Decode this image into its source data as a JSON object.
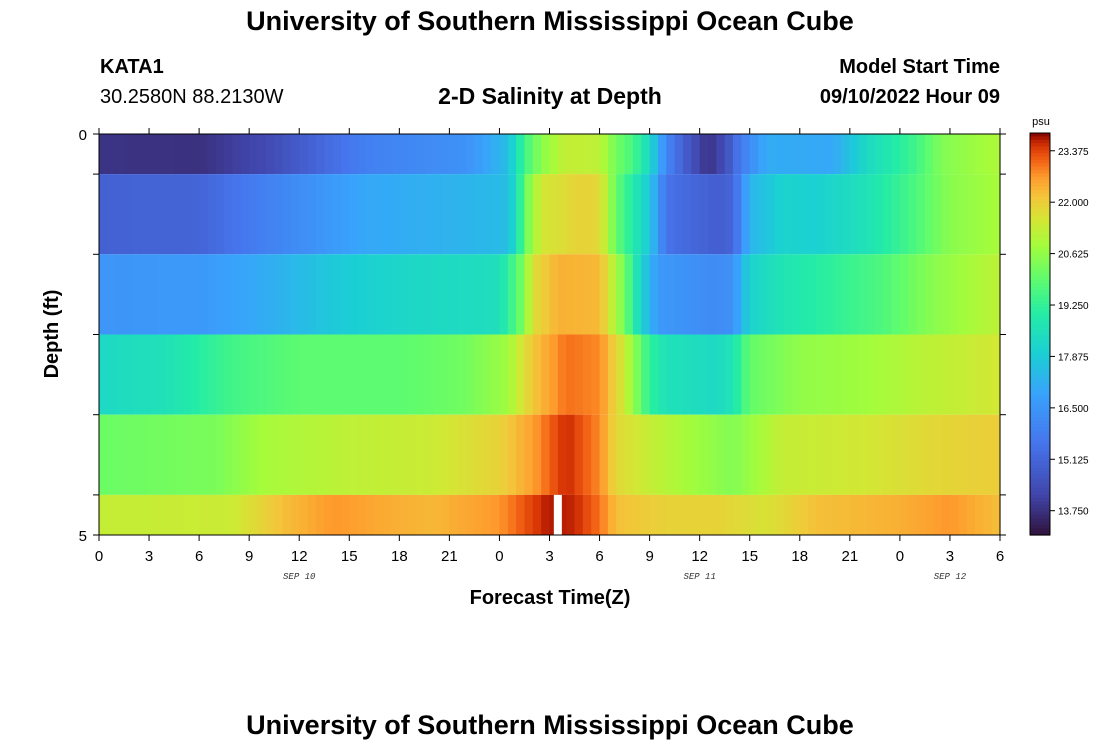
{
  "header": {
    "title": "University of Southern Mississippi Ocean Cube",
    "station": "KATA1",
    "coords": "30.2580N  88.2130W",
    "plot_title": "2-D Salinity at Depth",
    "model_start_label": "Model Start Time",
    "model_start_value": "09/10/2022 Hour 09"
  },
  "footer": {
    "title": "University of Southern Mississippi Ocean Cube"
  },
  "colorbar": {
    "unit": "psu",
    "tick_labels": [
      "23.375",
      "22.000",
      "20.625",
      "19.250",
      "17.875",
      "16.500",
      "15.125",
      "13.750"
    ],
    "tick_values": [
      23.375,
      22.0,
      20.625,
      19.25,
      17.875,
      16.5,
      15.125,
      13.75
    ],
    "range": [
      13.1,
      23.85
    ]
  },
  "chart_data": {
    "type": "heatmap",
    "title": "2-D Salinity at Depth",
    "xlabel": "Forecast Time(Z)",
    "ylabel": "Depth (ft)",
    "x_range_hours": [
      0,
      54
    ],
    "x_tick_labels": [
      "0",
      "3",
      "6",
      "9",
      "12",
      "15",
      "18",
      "21",
      "0",
      "3",
      "6",
      "9",
      "12",
      "15",
      "18",
      "21",
      "0",
      "3",
      "6"
    ],
    "date_labels": [
      {
        "text": "SEP 10",
        "hour": 12
      },
      {
        "text": "SEP 11",
        "hour": 36
      },
      {
        "text": "SEP 12",
        "hour": 51
      }
    ],
    "y_range_ft": [
      0,
      5
    ],
    "y_tick_labels": [
      "0",
      "5"
    ],
    "depth_layers_ft": [
      [
        0,
        0.5
      ],
      [
        0.5,
        1.5
      ],
      [
        1.5,
        2.5
      ],
      [
        2.5,
        3.5
      ],
      [
        3.5,
        4.5
      ],
      [
        4.5,
        5
      ]
    ],
    "missing_data": {
      "layer": 5,
      "hour": 27.5
    },
    "salinity_psu_keyframes": [
      {
        "layer": 0,
        "points": [
          [
            0,
            13.8
          ],
          [
            6,
            13.75
          ],
          [
            10,
            14.3
          ],
          [
            16,
            15.9
          ],
          [
            22,
            16.4
          ],
          [
            24.5,
            17.5
          ],
          [
            25.5,
            19.5
          ],
          [
            26.5,
            20.5
          ],
          [
            28,
            21.3
          ],
          [
            30,
            21.2
          ],
          [
            31,
            20.2
          ],
          [
            32,
            19.6
          ],
          [
            33,
            18.3
          ],
          [
            34,
            16.1
          ],
          [
            35,
            15.0
          ],
          [
            36.5,
            13.75
          ],
          [
            37.5,
            14.4
          ],
          [
            38.5,
            15.8
          ],
          [
            40,
            17.1
          ],
          [
            44,
            17.0
          ],
          [
            46,
            18.3
          ],
          [
            49,
            19.5
          ],
          [
            50.5,
            20.4
          ],
          [
            54,
            21.0
          ]
        ]
      },
      {
        "layer": 1,
        "points": [
          [
            0,
            15.0
          ],
          [
            6,
            15.1
          ],
          [
            10,
            15.9
          ],
          [
            16,
            17.0
          ],
          [
            22,
            17.3
          ],
          [
            24.5,
            17.5
          ],
          [
            25,
            18.4
          ],
          [
            25.5,
            20.0
          ],
          [
            26.5,
            21.5
          ],
          [
            29,
            21.9
          ],
          [
            30,
            21.8
          ],
          [
            31,
            20.0
          ],
          [
            32,
            18.9
          ],
          [
            33,
            17.8
          ],
          [
            34,
            15.5
          ],
          [
            37,
            14.9
          ],
          [
            38,
            15.1
          ],
          [
            39,
            17.3
          ],
          [
            41,
            18.1
          ],
          [
            43,
            18.0
          ],
          [
            46,
            18.6
          ],
          [
            49,
            19.7
          ],
          [
            51,
            20.5
          ],
          [
            54,
            20.9
          ]
        ]
      },
      {
        "layer": 2,
        "points": [
          [
            0,
            16.5
          ],
          [
            6,
            16.6
          ],
          [
            10,
            17.1
          ],
          [
            14,
            17.8
          ],
          [
            18,
            18.2
          ],
          [
            24,
            18.5
          ],
          [
            25.5,
            20.4
          ],
          [
            26,
            21.7
          ],
          [
            27.5,
            22.4
          ],
          [
            30,
            22.3
          ],
          [
            31.5,
            20.2
          ],
          [
            32.5,
            18.1
          ],
          [
            33.5,
            16.6
          ],
          [
            37,
            16.2
          ],
          [
            38,
            16.4
          ],
          [
            39,
            18.1
          ],
          [
            41,
            18.7
          ],
          [
            44,
            19.2
          ],
          [
            47,
            19.7
          ],
          [
            50,
            20.5
          ],
          [
            54,
            21.2
          ]
        ]
      },
      {
        "layer": 3,
        "points": [
          [
            0,
            18.3
          ],
          [
            4,
            18.6
          ],
          [
            8,
            19.5
          ],
          [
            12,
            19.9
          ],
          [
            18,
            19.9
          ],
          [
            22,
            20.2
          ],
          [
            24.5,
            20.8
          ],
          [
            26,
            22.1
          ],
          [
            28,
            23.0
          ],
          [
            30,
            22.8
          ],
          [
            31.5,
            21.4
          ],
          [
            33,
            19.2
          ],
          [
            34,
            18.6
          ],
          [
            37,
            18.3
          ],
          [
            38,
            18.7
          ],
          [
            39,
            20.0
          ],
          [
            42,
            20.6
          ],
          [
            46,
            20.8
          ],
          [
            50,
            21.2
          ],
          [
            54,
            21.5
          ]
        ]
      },
      {
        "layer": 4,
        "points": [
          [
            0,
            20.1
          ],
          [
            7,
            20.3
          ],
          [
            10,
            20.9
          ],
          [
            15,
            21.2
          ],
          [
            20,
            21.4
          ],
          [
            24,
            21.9
          ],
          [
            26,
            22.6
          ],
          [
            28,
            23.6
          ],
          [
            30,
            22.8
          ],
          [
            31,
            21.8
          ],
          [
            33,
            21.3
          ],
          [
            35,
            20.9
          ],
          [
            38,
            20.4
          ],
          [
            41,
            21.3
          ],
          [
            46,
            21.5
          ],
          [
            50,
            21.8
          ],
          [
            54,
            22.0
          ]
        ]
      },
      {
        "layer": 5,
        "points": [
          [
            0,
            21.3
          ],
          [
            8,
            21.4
          ],
          [
            11,
            22.2
          ],
          [
            14,
            22.7
          ],
          [
            18,
            22.4
          ],
          [
            20,
            22.3
          ],
          [
            24,
            22.7
          ],
          [
            26,
            23.4
          ],
          [
            27,
            23.7
          ],
          [
            28.5,
            23.6
          ],
          [
            30,
            23.0
          ],
          [
            31,
            22.2
          ],
          [
            34,
            21.9
          ],
          [
            37,
            21.9
          ],
          [
            40,
            21.6
          ],
          [
            43,
            22.2
          ],
          [
            48,
            22.4
          ],
          [
            51,
            22.7
          ],
          [
            54,
            22.2
          ]
        ]
      }
    ]
  }
}
